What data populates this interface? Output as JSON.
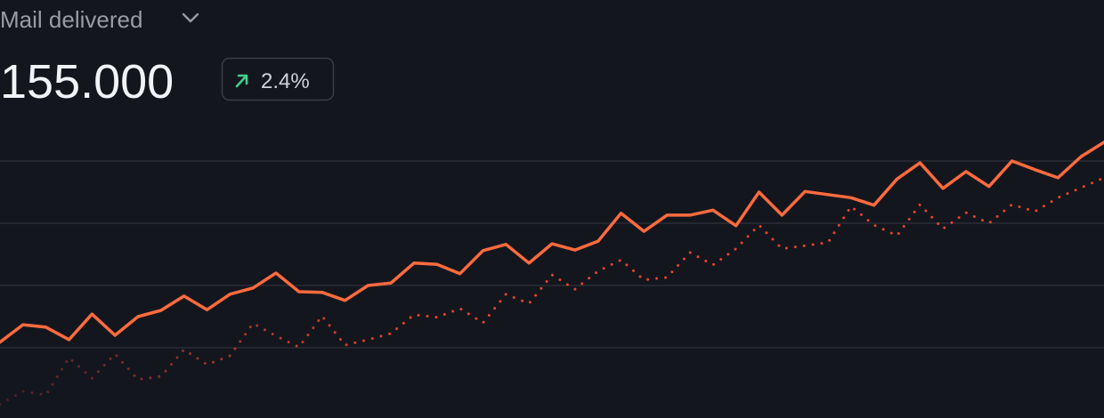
{
  "header": {
    "title": "Mail delivered",
    "value": "155.000",
    "change": "2.4%"
  },
  "chart_data": {
    "type": "line",
    "ylim": [
      0,
      4.5
    ],
    "yticks": [
      1,
      2,
      3,
      4
    ],
    "grid": true,
    "series": [
      {
        "color": "#ff6b3d",
        "style": "solid",
        "values": [
          1.09,
          1.37,
          1.33,
          1.13,
          1.54,
          1.2,
          1.5,
          1.6,
          1.83,
          1.61,
          1.86,
          1.96,
          2.2,
          1.9,
          1.89,
          1.76,
          2.0,
          2.04,
          2.36,
          2.34,
          2.19,
          2.56,
          2.66,
          2.36,
          2.67,
          2.57,
          2.71,
          3.16,
          2.87,
          3.13,
          3.13,
          3.21,
          2.96,
          3.5,
          3.13,
          3.51,
          3.46,
          3.41,
          3.29,
          3.71,
          3.97,
          3.56,
          3.83,
          3.59,
          4.0,
          3.86,
          3.73,
          4.07,
          4.3
        ]
      },
      {
        "color": "#e8442a",
        "style": "dotted",
        "values": [
          0.09,
          0.3,
          0.24,
          0.84,
          0.51,
          0.9,
          0.49,
          0.54,
          0.97,
          0.73,
          0.87,
          1.39,
          1.19,
          1.01,
          1.51,
          1.04,
          1.13,
          1.23,
          1.53,
          1.49,
          1.63,
          1.4,
          1.86,
          1.71,
          2.17,
          1.94,
          2.23,
          2.41,
          2.09,
          2.13,
          2.53,
          2.33,
          2.59,
          2.97,
          2.59,
          2.64,
          2.69,
          3.27,
          2.97,
          2.8,
          3.3,
          2.91,
          3.17,
          3.0,
          3.3,
          3.19,
          3.41,
          3.57,
          3.73
        ]
      }
    ]
  }
}
